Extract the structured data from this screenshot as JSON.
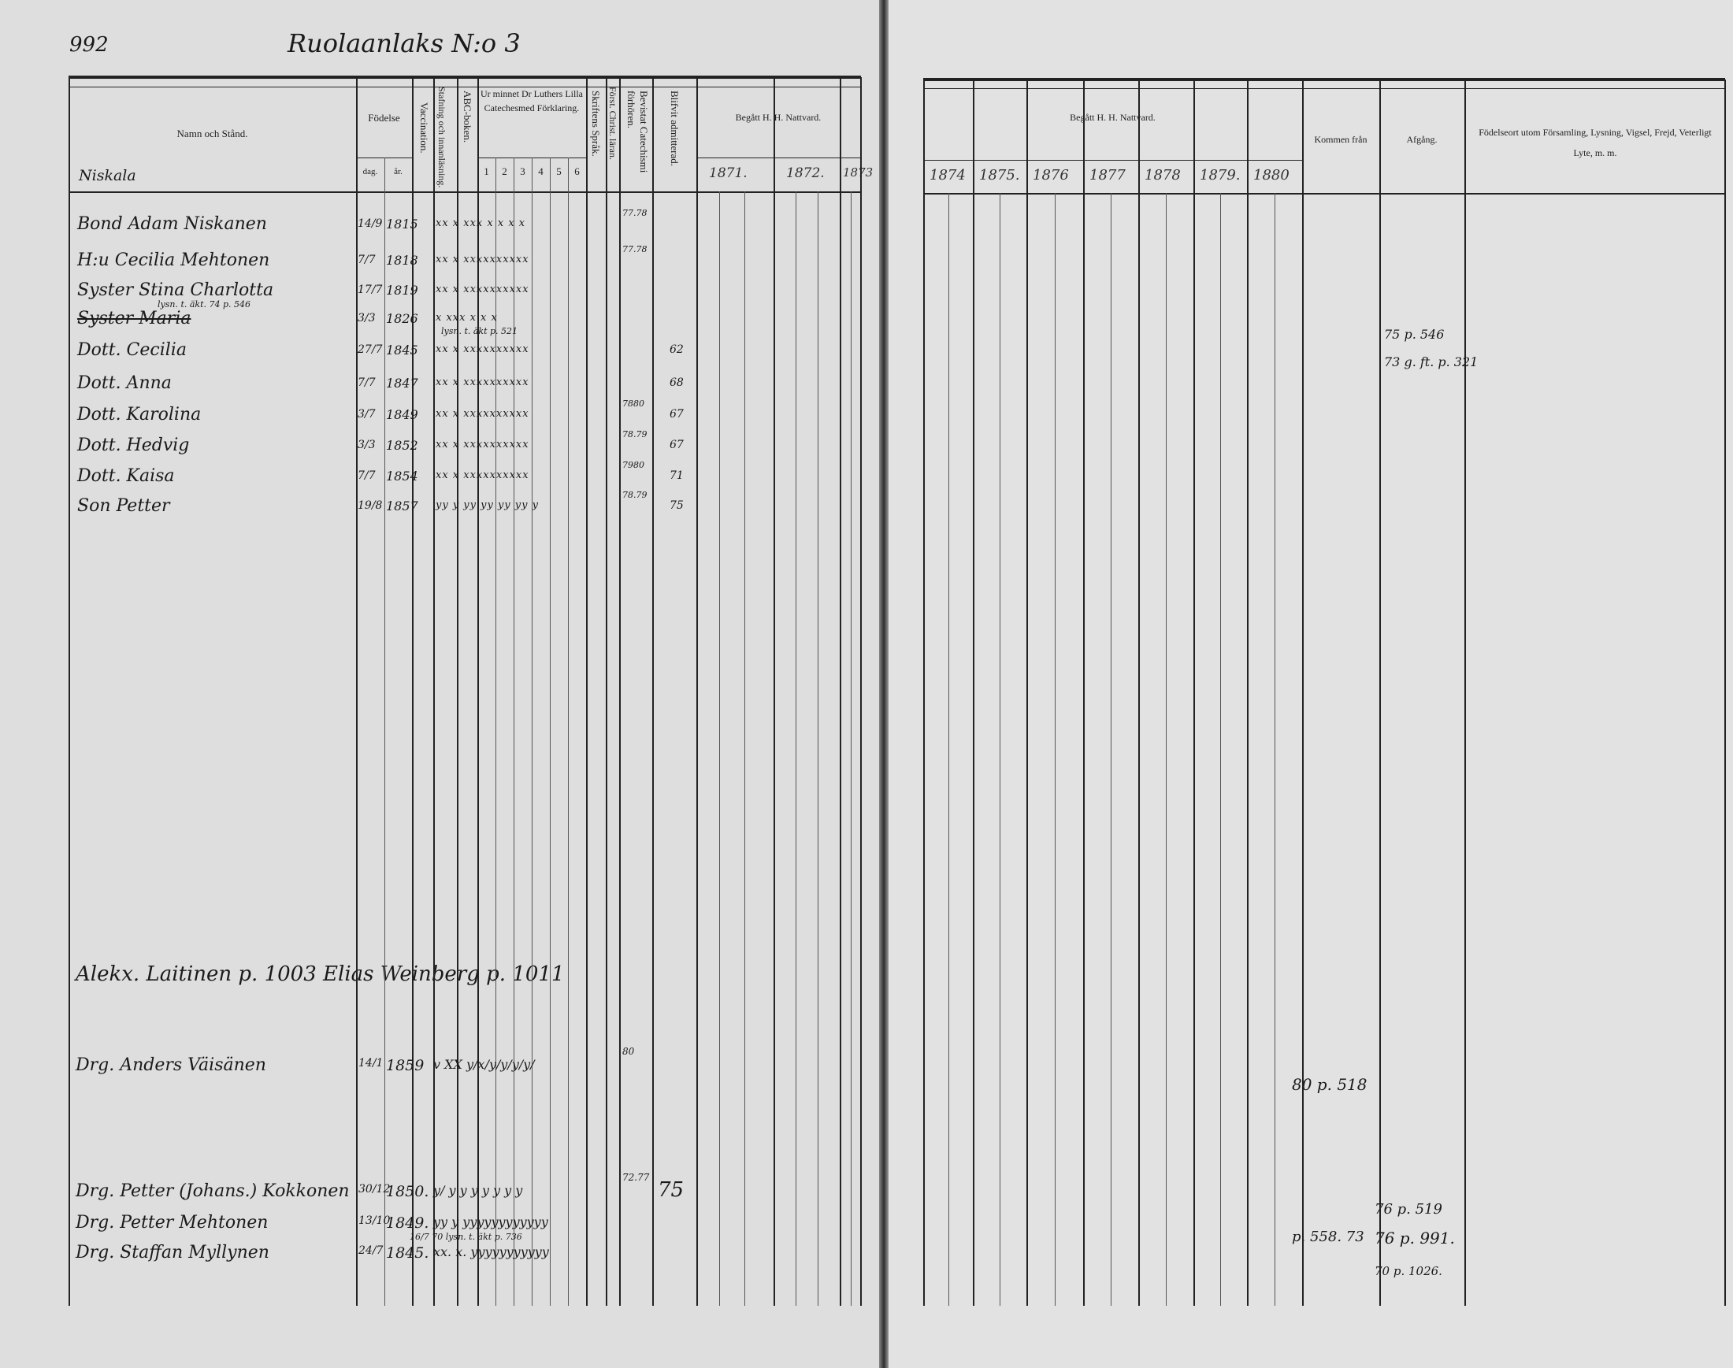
{
  "left_page": {
    "page_number": "992",
    "village_title": "Ruolaanlaks N:o 3",
    "headers": {
      "name": "Namn och Stånd.",
      "birth": "Födelse",
      "birth_day": "dag.",
      "birth_year": "år.",
      "vaccination": "Vaccination.",
      "reading": "Stafning och innanläsning.",
      "abc": "ABC-boken.",
      "catechism": "Ur minnet Dr Luthers Lilla Catechesmed Förklaring.",
      "catechism_cols": [
        "1",
        "2",
        "3",
        "4",
        "5",
        "6"
      ],
      "scripture": "Skriftens Språk.",
      "christian": "Först. Christ. läran.",
      "examinations": "Bevistat Catechismi förhören.",
      "admitted": "Blifvit admitterad.",
      "communion": "Begått H. H. Nattvard.",
      "years": [
        "1871.",
        "1872.",
        "1873"
      ]
    },
    "farm_name": "Niskala",
    "rows": [
      {
        "name": "Bond Adam Niskanen",
        "day": "14/9",
        "year": "1815",
        "marks": "xx x xxx x x x x",
        "exam": "77.78",
        "admitted": "",
        "struck": false
      },
      {
        "name": "H:u Cecilia Mehtonen",
        "day": "7/7",
        "year": "1818",
        "marks": "xx x xxxxxxxxxx",
        "exam": "77.78",
        "admitted": "",
        "struck": false
      },
      {
        "name": "Syster Stina Charlotta",
        "day": "17/7",
        "year": "1819",
        "marks": "xx x xxxxxxxxxx",
        "exam": "",
        "admitted": "",
        "struck": false,
        "note": "lysn. t. äkt. 74 p. 546"
      },
      {
        "name": "Syster Maria",
        "day": "3/3",
        "year": "1826",
        "marks": "x xxx x x x",
        "exam": "",
        "admitted": "",
        "struck": true
      },
      {
        "name": "Dott. Cecilia",
        "day": "27/7",
        "year": "1845",
        "marks": "xx x xxxxxxxxxx",
        "exam": "",
        "admitted": "62",
        "struck": false,
        "note": "lysn. t. äkt p. 521"
      },
      {
        "name": "Dott. Anna",
        "day": "7/7",
        "year": "1847",
        "marks": "xx x xxxxxxxxxx",
        "exam": "",
        "admitted": "68",
        "struck": false
      },
      {
        "name": "Dott. Karolina",
        "day": "3/7",
        "year": "1849",
        "marks": "xx x xxxxxxxxxx",
        "exam": "7880",
        "admitted": "67",
        "struck": false
      },
      {
        "name": "Dott. Hedvig",
        "day": "3/3",
        "year": "1852",
        "marks": "xx x xxxxxxxxxx",
        "exam": "78.79",
        "admitted": "67",
        "struck": false
      },
      {
        "name": "Dott. Kaisa",
        "day": "7/7",
        "year": "1854",
        "marks": "xx x xxxxxxxxxx",
        "exam": "7980",
        "admitted": "71",
        "struck": false
      },
      {
        "name": "Son Petter",
        "day": "19/8",
        "year": "1857",
        "marks": "yy y yy yy yy yy y",
        "exam": "78.79",
        "admitted": "75",
        "struck": false
      }
    ],
    "cross_reference": "Alekx. Laitinen p. 1003 Elias Weinberg p. 1011",
    "lower_rows": [
      {
        "name": "Drg. Anders Väisänen",
        "day": "14/1",
        "year": "1859",
        "marks": "v XX  y/x/y/y/y/y/",
        "exam": "80",
        "admitted": ""
      },
      {
        "name": "Drg. Petter (Johans.) Kokkonen",
        "day": "30/12",
        "year": "1850.",
        "marks": "y/ y y y y y y y",
        "exam": "72.77",
        "admitted": "75"
      },
      {
        "name": "Drg. Petter Mehtonen",
        "day": "13/10",
        "year": "1849.",
        "marks": "yy y yyyyyyyyyyyy",
        "exam": "",
        "admitted": "",
        "note": "16/7 70 lysn. t. äkt p. 736"
      },
      {
        "name": "Drg. Staffan Myllynen",
        "day": "24/7",
        "year": "1845.",
        "marks": "xx. x. yyyyyyyyyyy",
        "exam": "",
        "admitted": ""
      }
    ]
  },
  "right_page": {
    "headers": {
      "communion": "Begått H. H. Nattvard.",
      "years": [
        "1874",
        "1875.",
        "1876",
        "1877",
        "1878",
        "1879.",
        "1880"
      ],
      "came_from": "Kommen från",
      "departure": "Afgång.",
      "remarks": "Födelseort utom Församling, Lysning, Vigsel, Frejd, Veterligt Lyte, m. m."
    },
    "entries": {
      "departure_1": "75 p. 546",
      "departure_2": "73 g. ft. p. 321",
      "came_from_1": "80 p. 518",
      "departure_3": "76 p. 519",
      "came_from_2": "p. 558. 73",
      "departure_4": "76 p. 991.",
      "departure_5": "70 p. 1026."
    }
  }
}
